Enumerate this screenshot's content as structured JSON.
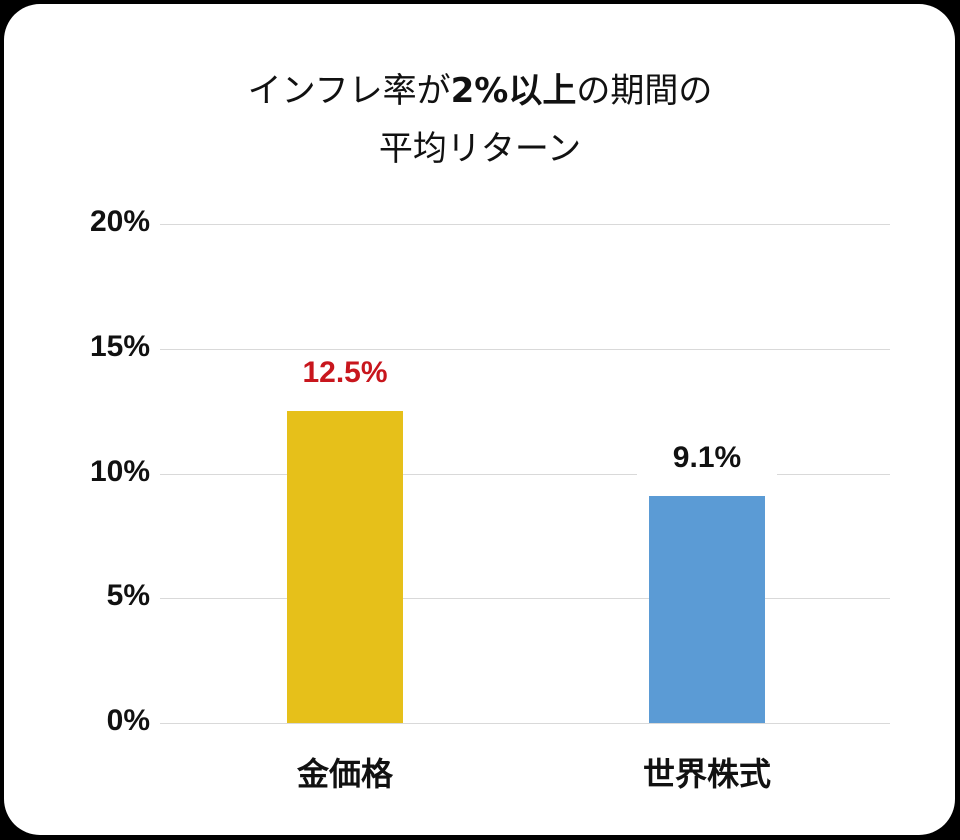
{
  "chart_data": {
    "type": "bar",
    "title": "インフレ率が2%以上の期間の平均リターン",
    "title_lines": {
      "line1_pre": "インフレ率が",
      "line1_bold": "2%以上",
      "line1_post": "の期間の",
      "line2": "平均リターン"
    },
    "categories": [
      "金価格",
      "世界株式"
    ],
    "values": [
      12.5,
      9.1
    ],
    "data_labels": [
      "12.5%",
      "9.1%"
    ],
    "colors": [
      "#E6C01A",
      "#5B9BD5"
    ],
    "label_colors": [
      "#C8161D",
      "#111111"
    ],
    "xlabel": "",
    "ylabel": "",
    "ylim": [
      0,
      20
    ],
    "yticks": [
      0,
      5,
      10,
      15,
      20
    ],
    "ytick_labels": [
      "0%",
      "5%",
      "10%",
      "15%",
      "20%"
    ],
    "grid": true,
    "legend": null
  }
}
